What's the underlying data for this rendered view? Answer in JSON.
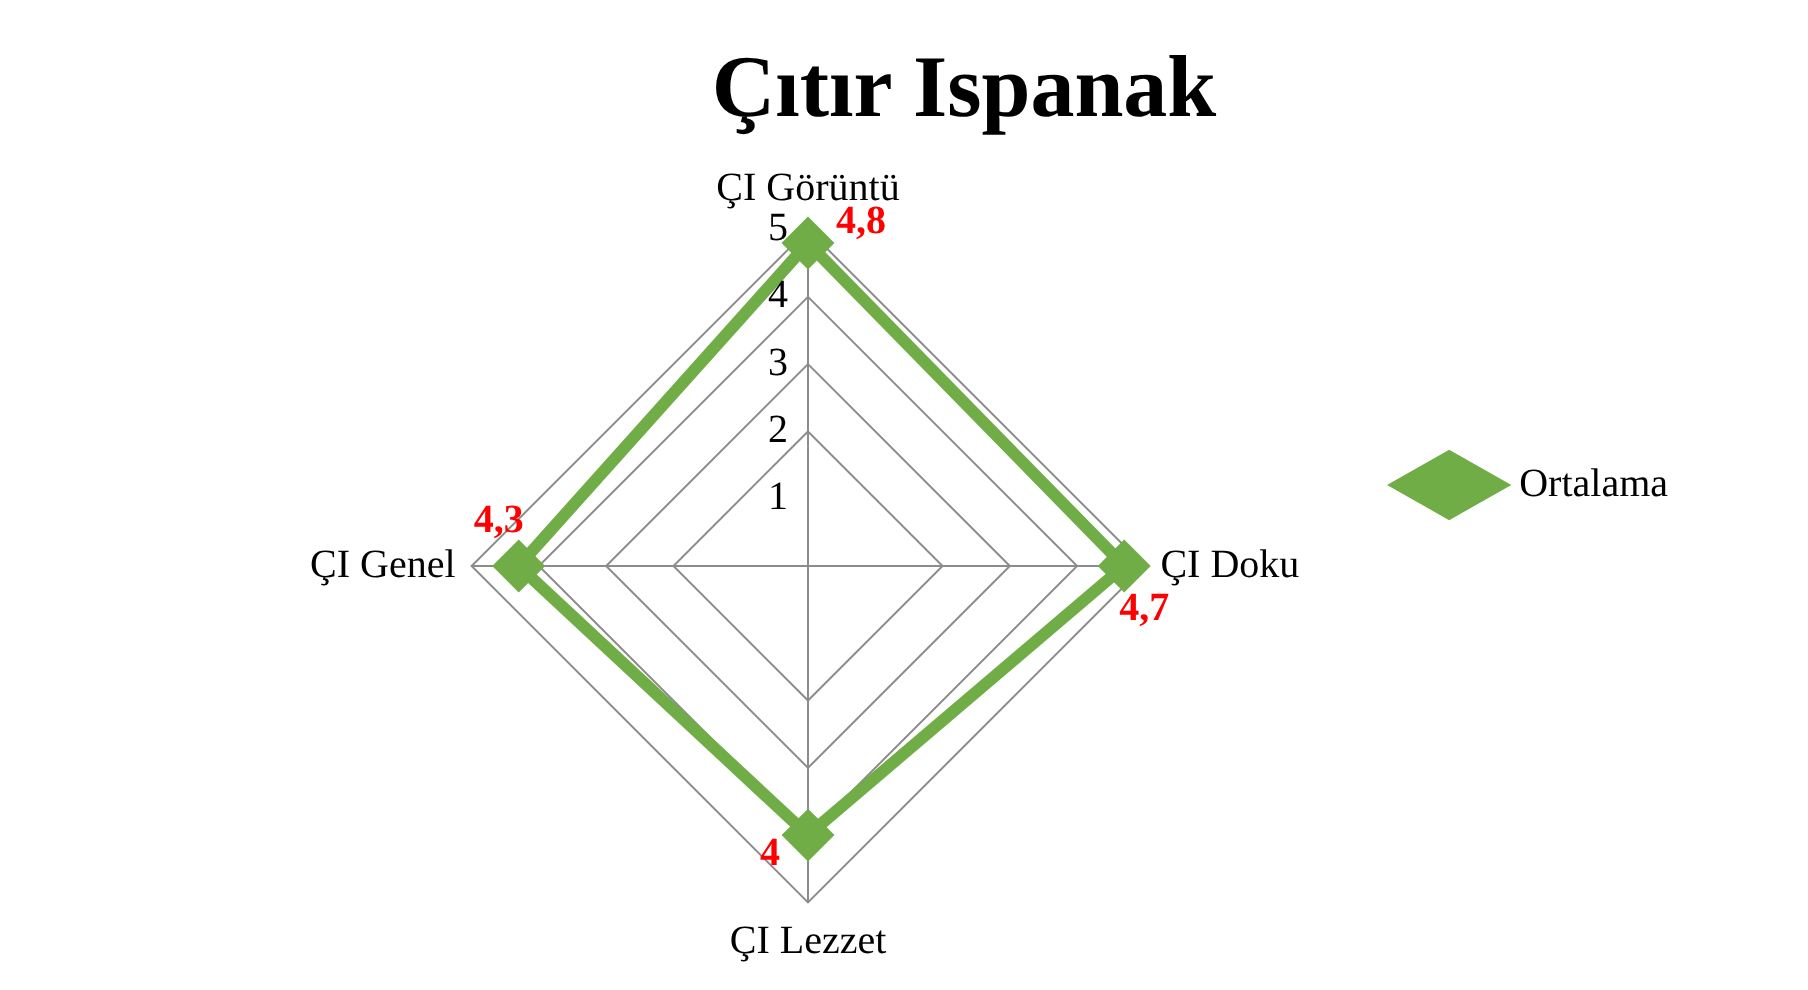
{
  "chart_data": {
    "type": "radar",
    "title": "Çıtır Ispanak",
    "categories": [
      "ÇI Görüntü",
      "ÇI Doku",
      "ÇI Lezzet",
      "ÇI Genel"
    ],
    "series": [
      {
        "name": "Ortalama",
        "color": "#70ad47",
        "values": [
          4.8,
          4.7,
          4,
          4.3
        ],
        "value_labels": [
          "4,8",
          "4,7",
          "4",
          "4,3"
        ]
      }
    ],
    "ylim": [
      0,
      5
    ],
    "yticks": [
      1,
      2,
      3,
      4,
      5
    ],
    "grid": true,
    "legend": "right",
    "marker": "diamond",
    "line_style": "solid"
  }
}
